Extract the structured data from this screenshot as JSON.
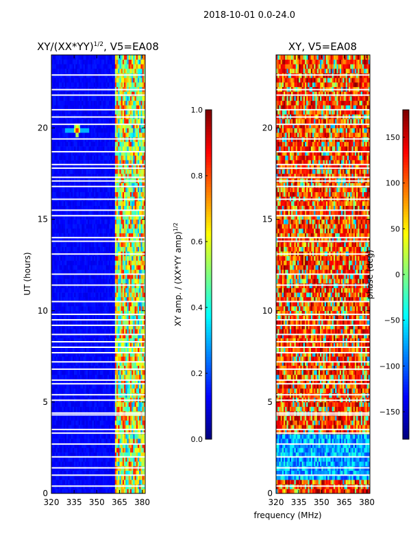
{
  "chart_data": {
    "type": "heatmap",
    "suptitle": "2018-10-01 0.0-24.0",
    "shared_xlabel": "frequency (MHz)",
    "panels": [
      {
        "id": "amp",
        "title": "XY/(XX*YY)",
        "title_sup": "1/2",
        "title_suffix": ", V5=EA08",
        "ylabel": "UT (hours)",
        "xlim": [
          320,
          382
        ],
        "ylim": [
          0,
          24
        ],
        "xticks": [
          320,
          335,
          350,
          365,
          380
        ],
        "yticks": [
          0,
          5,
          10,
          15,
          20
        ],
        "colorbar": {
          "label_main": "XY amp. / (XX*YY amp)",
          "label_sup": "1/2",
          "range": [
            0.0,
            1.0
          ],
          "ticks": [
            "0.0",
            "0.2",
            "0.4",
            "0.6",
            "0.8",
            "1.0"
          ],
          "tick_values": [
            0.0,
            0.2,
            0.4,
            0.6,
            0.8,
            1.0
          ],
          "colormap": "jet"
        },
        "description": "Low (dark blue) amplitude below ~362 MHz; bright patchy band 362-380 MHz; bright spot near 337 MHz at ~19.9 UT"
      },
      {
        "id": "phase",
        "title": "XY",
        "title_suffix": ", V5=EA08",
        "xlim": [
          320,
          382
        ],
        "ylim": [
          0,
          24
        ],
        "xticks": [
          320,
          335,
          350,
          365,
          380
        ],
        "yticks": [
          0,
          5,
          10,
          15,
          20
        ],
        "colorbar": {
          "label": "phase (deg)",
          "range": [
            -180,
            180
          ],
          "ticks": [
            "−150",
            "−100",
            "−50",
            "0",
            "50",
            "100",
            "150"
          ],
          "tick_values": [
            -150,
            -100,
            -50,
            0,
            50,
            100,
            150
          ],
          "colormap": "jet"
        },
        "description": "Noisy phase map, mostly 50-150 deg with blue patches at 0.8-3.3 UT"
      }
    ],
    "data_gaps_ut": [
      0.4,
      1.0,
      1.4,
      2.0,
      2.7,
      3.3,
      3.5,
      4.3,
      4.4,
      5.1,
      5.4,
      6.0,
      6.2,
      6.8,
      7.2,
      7.7,
      8.0,
      8.3,
      8.7,
      9.2,
      9.5,
      9.8,
      10.5,
      11.4,
      12.0,
      13.1,
      13.8,
      14.0,
      15.2,
      15.5,
      16.1,
      16.8,
      17.1,
      17.3,
      17.8,
      18.0,
      18.7,
      19.4,
      20.2,
      20.6,
      21.0,
      21.8,
      22.1,
      22.9
    ]
  }
}
